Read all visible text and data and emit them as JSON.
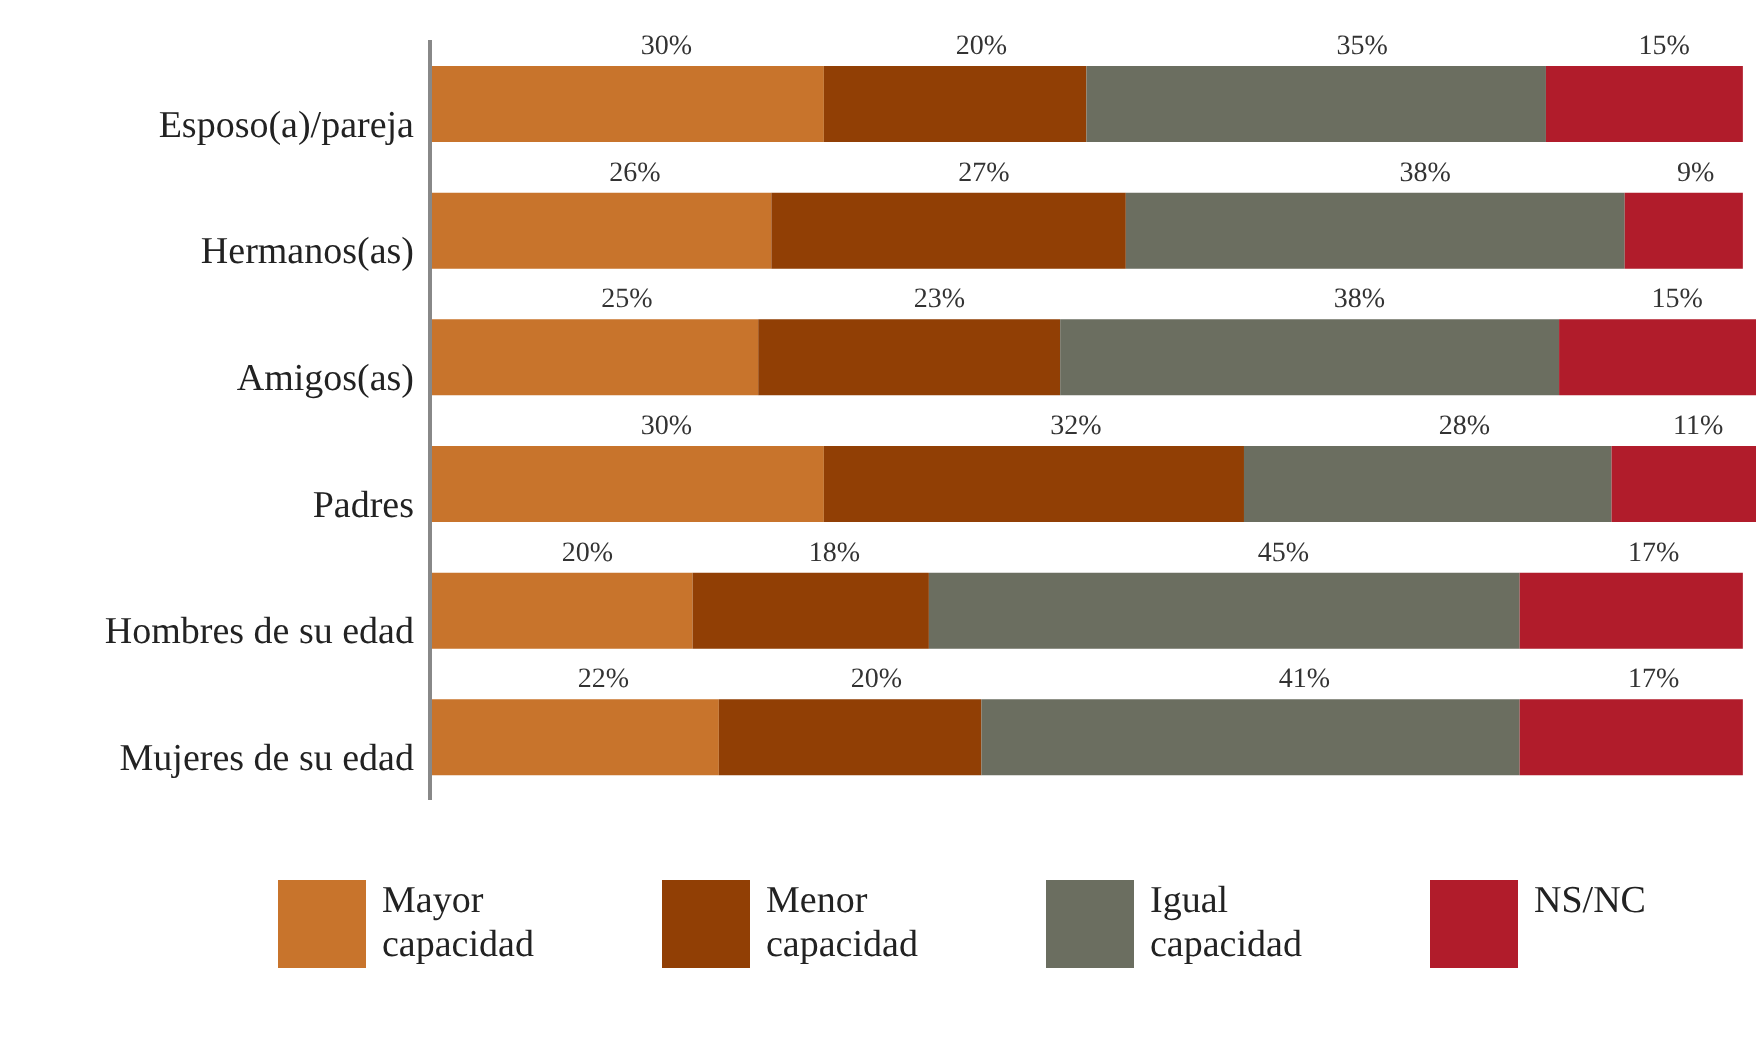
{
  "chart_data": {
    "type": "bar",
    "orientation": "horizontal",
    "stacked": true,
    "legend": "bottom",
    "categories": [
      "Esposo(a)/pareja",
      "Hermanos(as)",
      "Amigos(as)",
      "Padres",
      "Hombres de su edad",
      "Mujeres de su edad"
    ],
    "series": [
      {
        "name": "Mayor capacidad",
        "color": "#c8742c",
        "values": [
          30,
          26,
          25,
          30,
          20,
          22
        ],
        "value_labels": [
          "30%",
          "26%",
          "25%",
          "30%",
          "20%",
          "22%"
        ]
      },
      {
        "name": "Menor capacidad",
        "color": "#913f05",
        "values": [
          20,
          27,
          23,
          32,
          18,
          20
        ],
        "value_labels": [
          "20%",
          "27%",
          "23%",
          "32%",
          "18%",
          "20%"
        ]
      },
      {
        "name": "Igual capacidad",
        "color": "#6b6e60",
        "values": [
          35,
          38,
          38,
          28,
          45,
          41
        ],
        "value_labels": [
          "35%",
          "38%",
          "38%",
          "28%",
          "45%",
          "41%"
        ]
      },
      {
        "name": "NS/NC",
        "color": "#b11c2b",
        "values": [
          15,
          9,
          15,
          11,
          17,
          17
        ],
        "value_labels": [
          "15%",
          "9%",
          "15%",
          "11%",
          "17%",
          "17%"
        ]
      }
    ]
  }
}
